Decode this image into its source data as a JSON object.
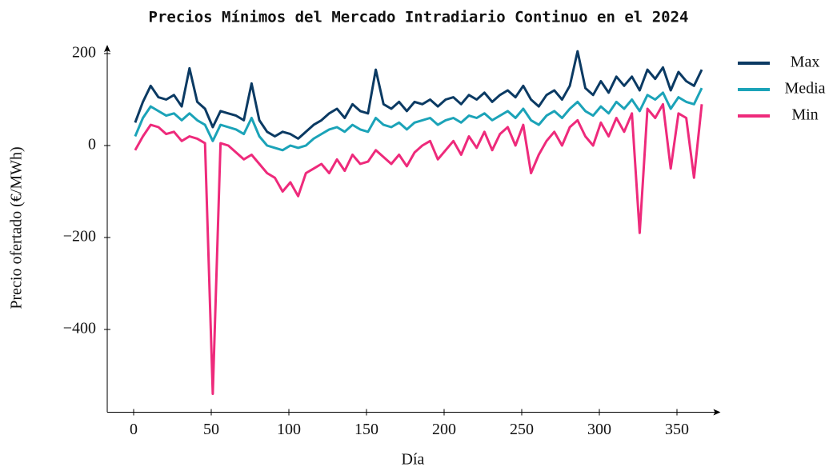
{
  "chart_data": {
    "type": "line",
    "title": "Precios Mínimos del Mercado Intradiario Continuo en el 2024",
    "x_label": "Día",
    "y_label": "Precio ofertado (€/MWh)",
    "x": [
      1,
      6,
      11,
      16,
      21,
      26,
      31,
      36,
      41,
      46,
      51,
      56,
      61,
      66,
      71,
      76,
      81,
      86,
      91,
      96,
      101,
      106,
      111,
      116,
      121,
      126,
      131,
      136,
      141,
      146,
      151,
      156,
      161,
      166,
      171,
      176,
      181,
      186,
      191,
      196,
      201,
      206,
      211,
      216,
      221,
      226,
      231,
      236,
      241,
      246,
      251,
      256,
      261,
      266,
      271,
      276,
      281,
      286,
      291,
      296,
      301,
      306,
      311,
      316,
      321,
      326,
      331,
      336,
      341,
      346,
      351,
      356,
      361,
      366
    ],
    "series": [
      {
        "name": "Max",
        "color": "#0b3a63",
        "values": [
          50,
          95,
          130,
          105,
          100,
          110,
          85,
          168,
          95,
          80,
          40,
          75,
          70,
          65,
          55,
          135,
          55,
          30,
          20,
          30,
          25,
          15,
          30,
          45,
          55,
          70,
          80,
          60,
          90,
          75,
          70,
          165,
          90,
          80,
          95,
          75,
          95,
          90,
          100,
          85,
          100,
          105,
          90,
          110,
          100,
          115,
          95,
          110,
          120,
          105,
          130,
          100,
          85,
          110,
          120,
          100,
          130,
          205,
          125,
          110,
          140,
          115,
          150,
          130,
          150,
          120,
          165,
          145,
          170,
          120,
          160,
          140,
          130,
          165
        ]
      },
      {
        "name": "Media",
        "color": "#1ba3b8",
        "values": [
          20,
          60,
          85,
          75,
          65,
          70,
          55,
          70,
          55,
          45,
          10,
          45,
          40,
          35,
          25,
          60,
          20,
          0,
          -5,
          -10,
          0,
          -5,
          0,
          15,
          25,
          35,
          40,
          30,
          45,
          35,
          30,
          60,
          45,
          40,
          50,
          35,
          50,
          55,
          60,
          45,
          55,
          60,
          50,
          65,
          60,
          70,
          55,
          65,
          75,
          60,
          80,
          55,
          45,
          65,
          75,
          60,
          80,
          95,
          75,
          65,
          85,
          70,
          95,
          80,
          100,
          75,
          110,
          100,
          115,
          80,
          105,
          95,
          90,
          125
        ]
      },
      {
        "name": "Min",
        "color": "#ee2a7b",
        "values": [
          -10,
          20,
          45,
          40,
          25,
          30,
          10,
          20,
          15,
          5,
          -540,
          5,
          0,
          -15,
          -30,
          -20,
          -40,
          -60,
          -70,
          -100,
          -80,
          -110,
          -60,
          -50,
          -40,
          -60,
          -30,
          -55,
          -20,
          -40,
          -35,
          -10,
          -25,
          -40,
          -20,
          -45,
          -15,
          0,
          10,
          -30,
          -10,
          10,
          -20,
          20,
          -5,
          30,
          -10,
          25,
          40,
          0,
          45,
          -60,
          -20,
          10,
          30,
          0,
          40,
          55,
          20,
          0,
          50,
          20,
          60,
          30,
          70,
          -190,
          80,
          60,
          90,
          -50,
          70,
          60,
          -70,
          90
        ]
      }
    ],
    "xlim": [
      -17,
      376
    ],
    "ylim": [
      -580,
      212
    ],
    "xticks": [
      0,
      50,
      100,
      150,
      200,
      250,
      300,
      350
    ],
    "yticks": [
      {
        "value": -400,
        "label": "−400"
      },
      {
        "value": -200,
        "label": "−200"
      },
      0,
      200
    ],
    "grid": false,
    "legend": "outside-right"
  }
}
